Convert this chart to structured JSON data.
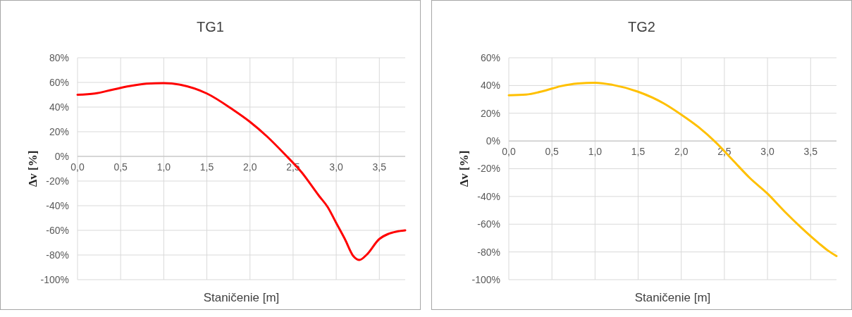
{
  "chart_data": [
    {
      "type": "line",
      "title": "TG1",
      "xlabel": "Staničenie [m]",
      "ylabel": "Δv [%]",
      "grid": true,
      "line_style": "solid",
      "xlim": [
        0,
        3.8
      ],
      "xticks": [
        {
          "value": 0,
          "label": "0,0"
        },
        {
          "value": 0.5,
          "label": "0,5"
        },
        {
          "value": 1,
          "label": "1,0"
        },
        {
          "value": 1.5,
          "label": "1,5"
        },
        {
          "value": 2,
          "label": "2,0"
        },
        {
          "value": 2.5,
          "label": "2,5"
        },
        {
          "value": 3,
          "label": "3,0"
        },
        {
          "value": 3.5,
          "label": "3,5"
        }
      ],
      "ylim": [
        -100,
        80
      ],
      "yticks": [
        {
          "value": 80,
          "label": "80%"
        },
        {
          "value": 60,
          "label": "60%"
        },
        {
          "value": 40,
          "label": "40%"
        },
        {
          "value": 20,
          "label": "20%"
        },
        {
          "value": 0,
          "label": "0%"
        },
        {
          "value": -20,
          "label": "-20%"
        },
        {
          "value": -40,
          "label": "-40%"
        },
        {
          "value": -60,
          "label": "-60%"
        },
        {
          "value": -80,
          "label": "-80%"
        },
        {
          "value": -100,
          "label": "-100%"
        }
      ],
      "series": [
        {
          "color": "#ff0000",
          "x": [
            0,
            0.2,
            0.4,
            0.6,
            0.8,
            1.0,
            1.2,
            1.5,
            1.8,
            2.0,
            2.2,
            2.4,
            2.6,
            2.8,
            2.9,
            3.0,
            3.1,
            3.2,
            3.27,
            3.35,
            3.5,
            3.6,
            3.7,
            3.8
          ],
          "values": [
            50,
            51,
            54,
            57,
            59,
            59.5,
            58,
            51,
            38,
            28,
            16,
            2,
            -13,
            -32,
            -41,
            -54,
            -67,
            -81,
            -84,
            -80,
            -67,
            -63,
            -61,
            -60
          ]
        }
      ]
    },
    {
      "type": "line",
      "title": "TG2",
      "xlabel": "Staničenie [m]",
      "ylabel": "Δv [%]",
      "grid": true,
      "line_style": "solid",
      "xlim": [
        0,
        3.8
      ],
      "xticks": [
        {
          "value": 0,
          "label": "0,0"
        },
        {
          "value": 0.5,
          "label": "0,5"
        },
        {
          "value": 1,
          "label": "1,0"
        },
        {
          "value": 1.5,
          "label": "1,5"
        },
        {
          "value": 2,
          "label": "2,0"
        },
        {
          "value": 2.5,
          "label": "2,5"
        },
        {
          "value": 3,
          "label": "3,0"
        },
        {
          "value": 3.5,
          "label": "3,5"
        }
      ],
      "ylim": [
        -100,
        60
      ],
      "yticks": [
        {
          "value": 60,
          "label": "60%"
        },
        {
          "value": 40,
          "label": "40%"
        },
        {
          "value": 20,
          "label": "20%"
        },
        {
          "value": 0,
          "label": "0%"
        },
        {
          "value": -20,
          "label": "-20%"
        },
        {
          "value": -40,
          "label": "-40%"
        },
        {
          "value": -60,
          "label": "-60%"
        },
        {
          "value": -80,
          "label": "-80%"
        },
        {
          "value": -100,
          "label": "-100%"
        }
      ],
      "series": [
        {
          "color": "#ffc000",
          "x": [
            0,
            0.2,
            0.4,
            0.6,
            0.8,
            1.0,
            1.2,
            1.5,
            1.8,
            2.0,
            2.2,
            2.4,
            2.6,
            2.8,
            3.0,
            3.2,
            3.4,
            3.6,
            3.7,
            3.8
          ],
          "values": [
            33,
            33.5,
            36,
            39.5,
            41.5,
            42,
            40.5,
            35.5,
            27,
            19,
            10,
            -1,
            -14,
            -27,
            -38,
            -51,
            -63,
            -74,
            -79,
            -83
          ]
        }
      ]
    }
  ]
}
